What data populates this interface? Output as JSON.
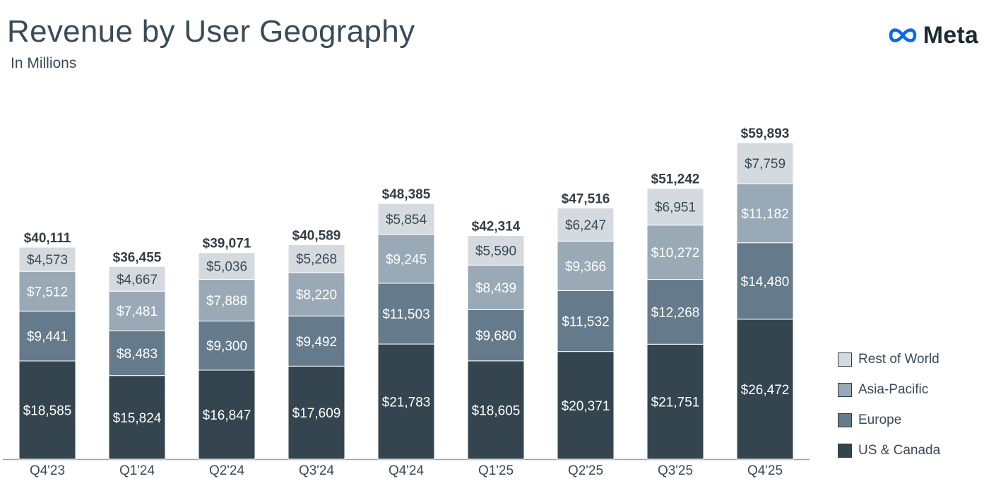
{
  "header": {
    "title": "Revenue by User Geography",
    "subtitle": "In Millions"
  },
  "logo": {
    "text": "Meta",
    "icon": "meta-infinity-icon",
    "color": "#0866ff"
  },
  "colors": {
    "rest_of_world": "#d5dadf",
    "asia_pacific": "#9aa9b6",
    "europe": "#657a8a",
    "us_canada": "#34454f",
    "axis": "#9aa3aa",
    "text": "#3a4a58",
    "total_text": "#333d46"
  },
  "legend": [
    {
      "label": "Rest of World",
      "color": "#d5dadf"
    },
    {
      "label": "Asia-Pacific",
      "color": "#9aa9b6"
    },
    {
      "label": "Europe",
      "color": "#657a8a"
    },
    {
      "label": "US & Canada",
      "color": "#34454f"
    }
  ],
  "chart_data": {
    "type": "bar",
    "stacked": true,
    "title": "Revenue by User Geography",
    "subtitle": "In Millions",
    "xlabel": "",
    "ylabel": "",
    "categories": [
      "Q4'23",
      "Q1'24",
      "Q2'24",
      "Q3'24",
      "Q4'24",
      "Q1'25",
      "Q2'25",
      "Q3'25",
      "Q4'25"
    ],
    "series": [
      {
        "name": "US & Canada",
        "labels": [
          "$18,585",
          "$15,824",
          "$16,847",
          "$17,609",
          "$21,783",
          "$18,605",
          "$20,371",
          "$21,751",
          "$26,472"
        ],
        "values": [
          18585,
          15824,
          16847,
          17609,
          21783,
          18605,
          20371,
          21751,
          26472
        ]
      },
      {
        "name": "Europe",
        "labels": [
          "$9,441",
          "$8,483",
          "$9,300",
          "$9,492",
          "$11,503",
          "$9,680",
          "$11,532",
          "$12,268",
          "$14,480"
        ],
        "values": [
          9441,
          8483,
          9300,
          9492,
          11503,
          9680,
          11532,
          12268,
          14480
        ]
      },
      {
        "name": "Asia-Pacific",
        "labels": [
          "$7,512",
          "$7,481",
          "$7,888",
          "$8,220",
          "$9,245",
          "$8,439",
          "$9,366",
          "$10,272",
          "$11,182"
        ],
        "values": [
          7512,
          7481,
          7888,
          8220,
          9245,
          8439,
          9366,
          10272,
          11182
        ]
      },
      {
        "name": "Rest of World",
        "labels": [
          "$4,573",
          "$4,667",
          "$5,036",
          "$5,268",
          "$5,854",
          "$5,590",
          "$6,247",
          "$6,951",
          "$7,759"
        ],
        "values": [
          4573,
          4667,
          5036,
          5268,
          5854,
          5590,
          6247,
          6951,
          7759
        ]
      }
    ],
    "totals": [
      "$40,111",
      "$36,455",
      "$39,071",
      "$40,589",
      "$48,385",
      "$42,314",
      "$47,516",
      "$51,242",
      "$59,893"
    ],
    "ylim": [
      0,
      59893
    ],
    "legend_position": "bottom-right",
    "grid": false
  }
}
